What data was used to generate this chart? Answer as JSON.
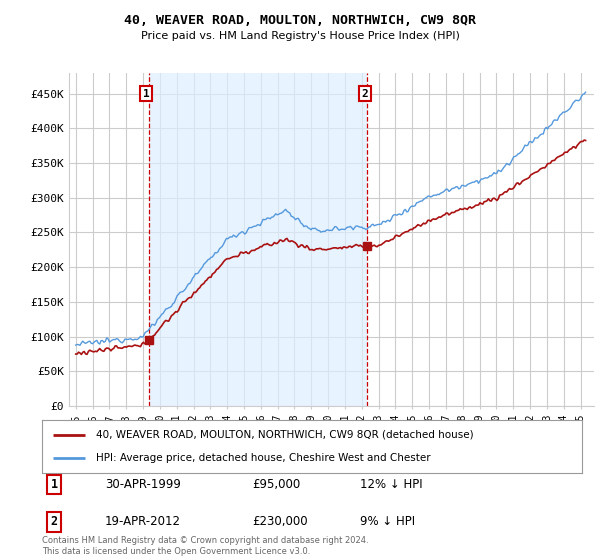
{
  "title": "40, WEAVER ROAD, MOULTON, NORTHWICH, CW9 8QR",
  "subtitle": "Price paid vs. HM Land Registry's House Price Index (HPI)",
  "ylabel_ticks": [
    "£0",
    "£50K",
    "£100K",
    "£150K",
    "£200K",
    "£250K",
    "£300K",
    "£350K",
    "£400K",
    "£450K"
  ],
  "ytick_values": [
    0,
    50000,
    100000,
    150000,
    200000,
    250000,
    300000,
    350000,
    400000,
    450000
  ],
  "ylim": [
    0,
    480000
  ],
  "hpi_color": "#5599dd",
  "price_color": "#aa1111",
  "vline_color": "#cc0000",
  "shade_color": "#ddeeff",
  "point1_year": 1999.33,
  "point1_price": 95000,
  "point2_year": 2012.33,
  "point2_price": 230000,
  "point1_date": "30-APR-1999",
  "point1_pct": "12% ↓ HPI",
  "point2_date": "19-APR-2012",
  "point2_pct": "9% ↓ HPI",
  "legend_line1": "40, WEAVER ROAD, MOULTON, NORTHWICH, CW9 8QR (detached house)",
  "legend_line2": "HPI: Average price, detached house, Cheshire West and Chester",
  "footnote": "Contains HM Land Registry data © Crown copyright and database right 2024.\nThis data is licensed under the Open Government Licence v3.0.",
  "background_color": "#ffffff",
  "plot_bg_color": "#ffffff",
  "grid_color": "#cccccc"
}
